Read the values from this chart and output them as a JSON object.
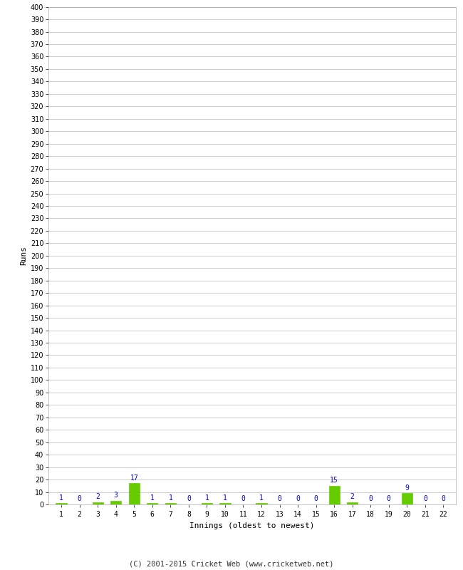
{
  "innings": [
    1,
    2,
    3,
    4,
    5,
    6,
    7,
    8,
    9,
    10,
    11,
    12,
    13,
    14,
    15,
    16,
    17,
    18,
    19,
    20,
    21,
    22
  ],
  "runs": [
    1,
    0,
    2,
    3,
    17,
    1,
    1,
    0,
    1,
    1,
    0,
    1,
    0,
    0,
    0,
    15,
    2,
    0,
    0,
    9,
    0,
    0
  ],
  "bar_color": "#66cc00",
  "label_color": "#0000cc",
  "ylabel": "Runs",
  "xlabel": "Innings (oldest to newest)",
  "footer": "(C) 2001-2015 Cricket Web (www.cricketweb.net)",
  "ylim": [
    0,
    400
  ],
  "background_color": "#ffffff",
  "grid_color": "#cccccc"
}
